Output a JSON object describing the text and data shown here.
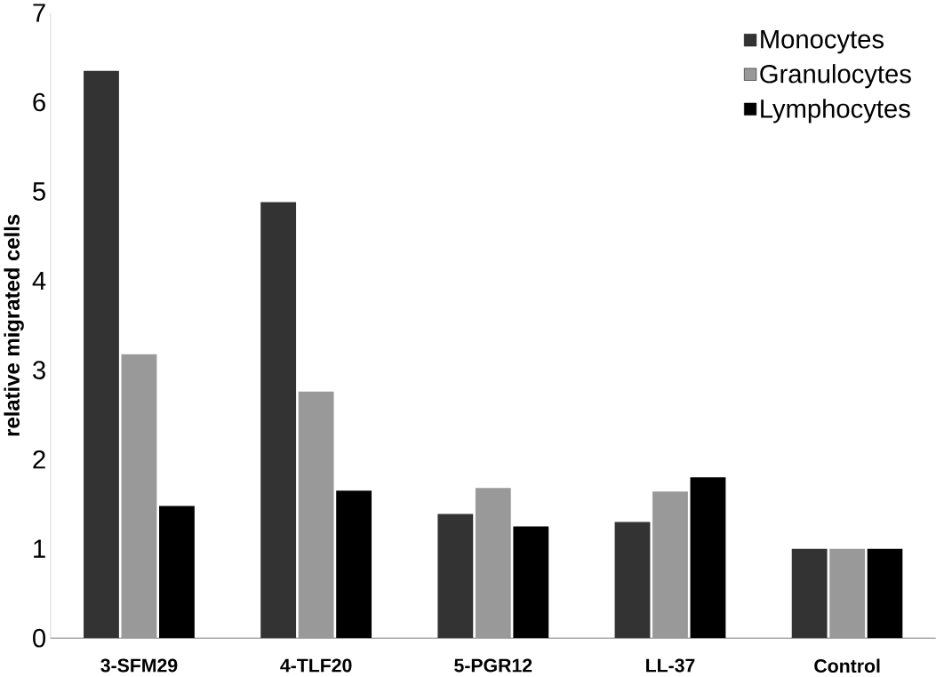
{
  "chart_data": {
    "type": "bar",
    "ylabel": "relative migrated cells",
    "categories": [
      "3-SFM29",
      "4-TLF20",
      "5-PGR12",
      "LL-37",
      "Control"
    ],
    "series": [
      {
        "name": "Monocytes",
        "color": "#333333",
        "values": [
          6.35,
          4.88,
          1.39,
          1.3,
          1.0
        ]
      },
      {
        "name": "Granulocytes",
        "color": "#999999",
        "values": [
          3.18,
          2.76,
          1.68,
          1.64,
          1.0
        ]
      },
      {
        "name": "Lymphocytes",
        "color": "#000000",
        "values": [
          1.48,
          1.65,
          1.25,
          1.8,
          1.0
        ]
      }
    ],
    "ylim": [
      0,
      7
    ],
    "yticks": [
      0,
      1,
      2,
      3,
      4,
      5,
      6,
      7
    ],
    "grid": false,
    "legend": "top right"
  }
}
